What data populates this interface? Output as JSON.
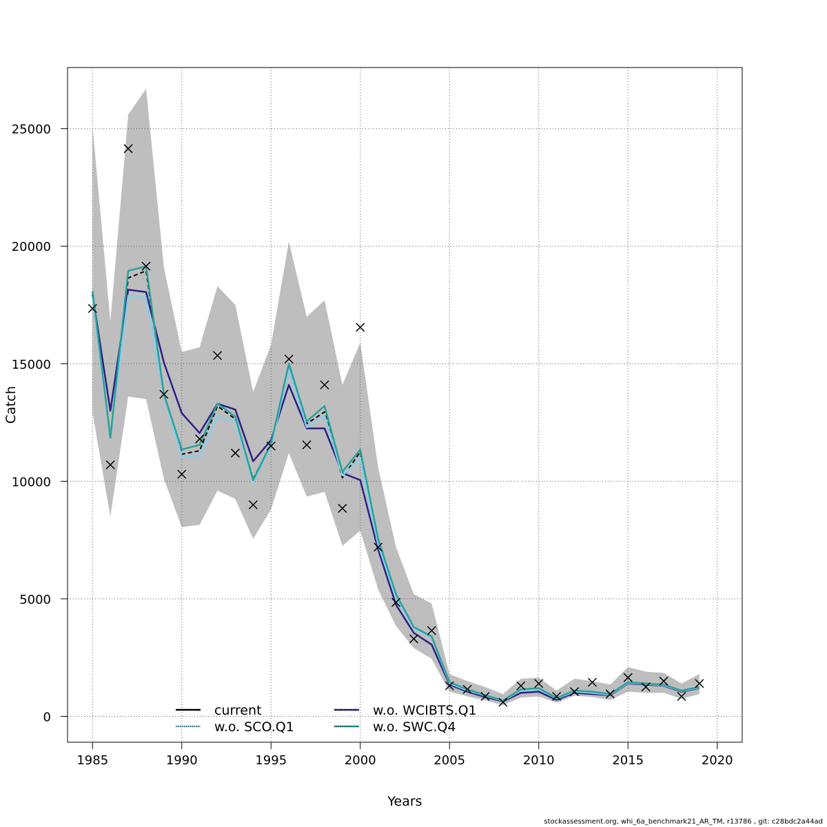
{
  "chart_data": {
    "type": "line",
    "xlabel": "Years",
    "ylabel": "Catch",
    "xlim": [
      1983.6,
      2021.4
    ],
    "ylim": [
      -1100,
      27600
    ],
    "x_ticks": [
      1985,
      1990,
      1995,
      2000,
      2005,
      2010,
      2015,
      2020
    ],
    "y_ticks": [
      0,
      5000,
      10000,
      15000,
      20000,
      25000
    ],
    "grid": true,
    "legend_position": "bottom",
    "band": {
      "color": "#bebebe",
      "x": [
        1985,
        1986,
        1987,
        1988,
        1989,
        1990,
        1991,
        1992,
        1993,
        1994,
        1995,
        1996,
        1997,
        1998,
        1999,
        2000,
        2001,
        2002,
        2003,
        2004,
        2005,
        2006,
        2007,
        2008,
        2009,
        2010,
        2011,
        2012,
        2013,
        2014,
        2015,
        2016,
        2017,
        2018,
        2019
      ],
      "upper": [
        25100,
        16800,
        25600,
        26700,
        19100,
        15500,
        15700,
        18300,
        17500,
        13800,
        15800,
        20200,
        17000,
        17700,
        14100,
        15900,
        10600,
        7200,
        5200,
        4800,
        1800,
        1500,
        1250,
        950,
        1600,
        1650,
        1100,
        1600,
        1500,
        1350,
        2100,
        1900,
        1850,
        1400,
        1800
      ],
      "lower": [
        12900,
        8500,
        13600,
        13500,
        10100,
        8050,
        8150,
        9600,
        9250,
        7550,
        8800,
        11200,
        9350,
        9550,
        7250,
        7900,
        5400,
        3850,
        2900,
        2450,
        1050,
        850,
        680,
        480,
        800,
        850,
        580,
        880,
        820,
        700,
        1050,
        1000,
        1000,
        750,
        950
      ]
    },
    "x": [
      1985,
      1986,
      1987,
      1988,
      1989,
      1990,
      1991,
      1992,
      1993,
      1994,
      1995,
      1996,
      1997,
      1998,
      1999,
      2000,
      2001,
      2002,
      2003,
      2004,
      2005,
      2006,
      2007,
      2008,
      2009,
      2010,
      2011,
      2012,
      2013,
      2014,
      2015,
      2016,
      2017,
      2018,
      2019
    ],
    "series": [
      {
        "name": "current",
        "color": "#000000",
        "dash": "6,4",
        "width": 2,
        "values": [
          18000,
          11900,
          18650,
          18950,
          13750,
          11150,
          11300,
          13200,
          12650,
          10100,
          11550,
          14950,
          12450,
          12950,
          10150,
          11250,
          7500,
          5150,
          3800,
          3400,
          1450,
          1150,
          900,
          680,
          1150,
          1200,
          780,
          1100,
          1050,
          950,
          1450,
          1400,
          1350,
          1100,
          1250
        ]
      },
      {
        "name": "w.o. WCIBTS.Q1",
        "color": "#2c1f86",
        "dash": "",
        "width": 2.5,
        "values": [
          17950,
          13000,
          18150,
          18050,
          15050,
          12900,
          12050,
          13300,
          13050,
          10850,
          11750,
          14100,
          12250,
          12250,
          10350,
          10050,
          7100,
          4750,
          3550,
          3050,
          1350,
          1050,
          820,
          640,
          1000,
          1050,
          700,
          1000,
          950,
          900,
          1400,
          1350,
          1300,
          1050,
          1200
        ]
      },
      {
        "name": "w.o. SCO.Q1",
        "color": "#87ceeb",
        "dash": "",
        "width": 2.5,
        "values": [
          17850,
          11850,
          17900,
          17800,
          13650,
          11050,
          11050,
          12750,
          12550,
          9950,
          11500,
          14750,
          12300,
          12800,
          10250,
          10950,
          7300,
          5050,
          3750,
          3350,
          1400,
          1100,
          880,
          660,
          1100,
          1150,
          760,
          1050,
          1000,
          920,
          1420,
          1380,
          1320,
          1080,
          1220
        ]
      },
      {
        "name": "w.o. SWC.Q4",
        "color": "#2aa198",
        "dash": "",
        "width": 2.5,
        "values": [
          18100,
          11850,
          18950,
          19150,
          13700,
          11350,
          11550,
          13300,
          12750,
          10050,
          11600,
          15000,
          12550,
          13200,
          10400,
          11350,
          7550,
          5200,
          3800,
          3400,
          1450,
          1150,
          900,
          680,
          1150,
          1200,
          780,
          1100,
          1050,
          950,
          1450,
          1400,
          1350,
          1100,
          1250
        ]
      }
    ],
    "observations": {
      "marker": "x",
      "color": "#000000",
      "x": [
        1985,
        1986,
        1987,
        1988,
        1989,
        1990,
        1991,
        1992,
        1993,
        1994,
        1995,
        1996,
        1997,
        1998,
        1999,
        2000,
        2001,
        2002,
        2003,
        2004,
        2005,
        2006,
        2007,
        2008,
        2009,
        2010,
        2011,
        2012,
        2013,
        2014,
        2015,
        2016,
        2017,
        2018,
        2019
      ],
      "values": [
        17350,
        10700,
        24150,
        19150,
        13700,
        10300,
        11800,
        15350,
        11200,
        9000,
        11500,
        15200,
        11550,
        14100,
        8850,
        16550,
        7200,
        4850,
        3300,
        3650,
        1300,
        1150,
        850,
        600,
        1300,
        1400,
        850,
        1050,
        1450,
        950,
        1650,
        1250,
        1500,
        850,
        1400
      ]
    },
    "legend": {
      "entries": [
        {
          "label": "current",
          "color": "#000000",
          "marker": "dash"
        },
        {
          "label": "w.o. SCO.Q1",
          "color": "#87ceeb",
          "marker": "dot"
        },
        {
          "label": "w.o. WCIBTS.Q1",
          "color": "#2c1f86",
          "marker": "dash"
        },
        {
          "label": "w.o. SWC.Q4",
          "color": "#2aa198",
          "marker": "dot"
        }
      ]
    }
  },
  "footer_text": "stockassessment.org, whi_6a_benchmark21_AR_TM, r13786 , git: c28bdc2a44ad"
}
